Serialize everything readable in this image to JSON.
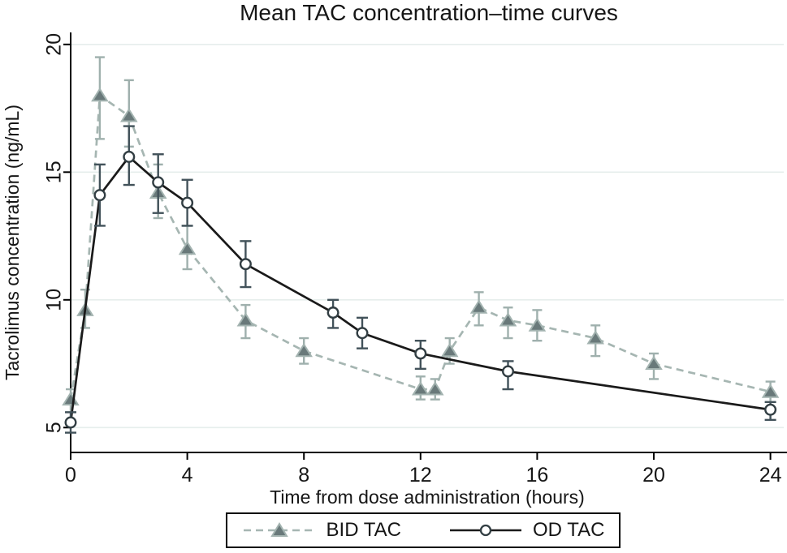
{
  "title": "Mean TAC concentration–time curves",
  "axes": {
    "x_title": "Time from dose administration (hours)",
    "y_title": "Tacrolimus concentration (ng/mL)",
    "x_tick_labels": [
      "0",
      "4",
      "8",
      "12",
      "16",
      "20",
      "24"
    ],
    "y_tick_labels": [
      "5",
      "10",
      "15",
      "20"
    ]
  },
  "legend": {
    "items": [
      {
        "label": "BID TAC",
        "symbol": "dashed-line-triangle"
      },
      {
        "label": "OD TAC",
        "symbol": "solid-line-circle"
      }
    ]
  },
  "colors": {
    "bid_line": "#a6b6b2",
    "bid_error": "#9fb0ad",
    "bid_marker_fill": "#69797a",
    "bid_marker_stroke": "#a3b3b0",
    "od_line": "#1a1a1a",
    "od_error": "#42525a",
    "od_marker_stroke": "#323e43",
    "od_marker_fill": "#ffffff",
    "gridline": "#e6eeec",
    "axis": "#000000",
    "text": "#161616"
  },
  "chart_data": {
    "type": "line",
    "title": "Mean TAC concentration–time curves",
    "xlabel": "Time from dose administration (hours)",
    "ylabel": "Tacrolimus concentration (ng/mL)",
    "xlim": [
      -0.6,
      24.55
    ],
    "ylim": [
      4.0,
      20.5
    ],
    "xticks": [
      0,
      4,
      8,
      12,
      16,
      20,
      24
    ],
    "yticks": [
      5,
      10,
      15,
      20
    ],
    "grid": "horizontal",
    "legend_position": "bottom-center",
    "error_bars": true,
    "series": [
      {
        "name": "BID TAC",
        "marker": "triangle",
        "line_style": "dashed",
        "points": [
          {
            "x": 0,
            "y": 6.1,
            "lo": 5.6,
            "hi": 6.5
          },
          {
            "x": 0.5,
            "y": 9.6,
            "lo": 8.9,
            "hi": 10.4
          },
          {
            "x": 1,
            "y": 18.0,
            "lo": 16.3,
            "hi": 19.5
          },
          {
            "x": 2,
            "y": 17.2,
            "lo": 16.0,
            "hi": 18.6
          },
          {
            "x": 3,
            "y": 14.2,
            "lo": 13.2,
            "hi": 15.3
          },
          {
            "x": 4,
            "y": 12.0,
            "lo": 11.2,
            "hi": 12.9
          },
          {
            "x": 6,
            "y": 9.2,
            "lo": 8.5,
            "hi": 9.8
          },
          {
            "x": 8,
            "y": 8.0,
            "lo": 7.5,
            "hi": 8.5
          },
          {
            "x": 12,
            "y": 6.5,
            "lo": 6.1,
            "hi": 7.0
          },
          {
            "x": 12.5,
            "y": 6.5,
            "lo": 6.1,
            "hi": 6.9
          },
          {
            "x": 13,
            "y": 8.0,
            "lo": 7.5,
            "hi": 8.5
          },
          {
            "x": 14,
            "y": 9.7,
            "lo": 9.0,
            "hi": 10.3
          },
          {
            "x": 15,
            "y": 9.2,
            "lo": 8.5,
            "hi": 9.7
          },
          {
            "x": 16,
            "y": 9.0,
            "lo": 8.4,
            "hi": 9.6
          },
          {
            "x": 18,
            "y": 8.5,
            "lo": 7.8,
            "hi": 9.0
          },
          {
            "x": 20,
            "y": 7.5,
            "lo": 6.9,
            "hi": 7.9
          },
          {
            "x": 24,
            "y": 6.4,
            "lo": 6.0,
            "hi": 6.8
          }
        ]
      },
      {
        "name": "OD TAC",
        "marker": "circle",
        "line_style": "solid",
        "points": [
          {
            "x": 0,
            "y": 5.2,
            "lo": 4.8,
            "hi": 5.6
          },
          {
            "x": 1,
            "y": 14.1,
            "lo": 12.9,
            "hi": 15.3
          },
          {
            "x": 2,
            "y": 15.6,
            "lo": 14.5,
            "hi": 16.8
          },
          {
            "x": 3,
            "y": 14.6,
            "lo": 13.4,
            "hi": 15.7
          },
          {
            "x": 4,
            "y": 13.8,
            "lo": 12.9,
            "hi": 14.7
          },
          {
            "x": 6,
            "y": 11.4,
            "lo": 10.5,
            "hi": 12.3
          },
          {
            "x": 9,
            "y": 9.5,
            "lo": 8.9,
            "hi": 10.0
          },
          {
            "x": 10,
            "y": 8.7,
            "lo": 8.1,
            "hi": 9.3
          },
          {
            "x": 12,
            "y": 7.9,
            "lo": 7.3,
            "hi": 8.4
          },
          {
            "x": 15,
            "y": 7.2,
            "lo": 6.5,
            "hi": 7.6
          },
          {
            "x": 24,
            "y": 5.7,
            "lo": 5.3,
            "hi": 6.0
          }
        ]
      }
    ]
  }
}
